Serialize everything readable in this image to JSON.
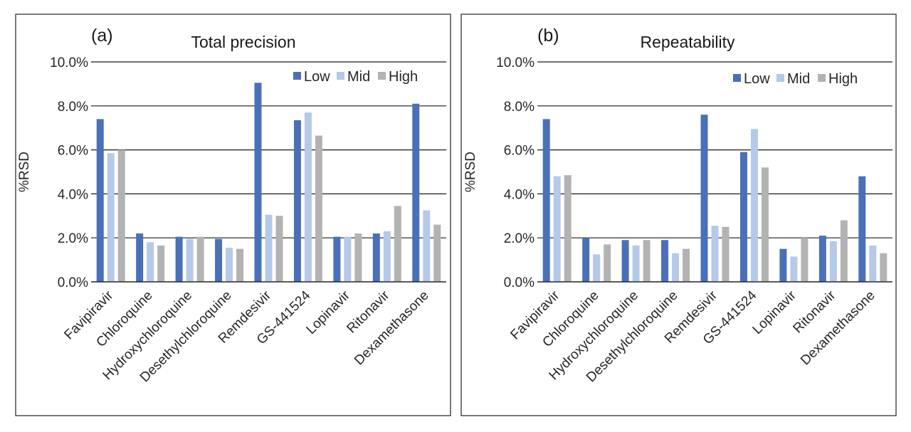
{
  "chart_data": [
    {
      "type": "bar",
      "panel_label": "(a)",
      "title": "Total precision",
      "ylabel": "%RSD",
      "xlabel": "",
      "ylim": [
        0,
        10
      ],
      "y_ticks": [
        "0.0%",
        "2.0%",
        "4.0%",
        "6.0%",
        "8.0%",
        "10.0%"
      ],
      "y_tick_values": [
        0,
        2,
        4,
        6,
        8,
        10
      ],
      "grid": true,
      "legend_position": "top-right",
      "categories": [
        "Favipiravir",
        "Chloroquine",
        "Hydroxychloroquine",
        "Desethylchloroquine",
        "Remdesivir",
        "GS-441524",
        "Lopinavir",
        "Ritonavir",
        "Dexamethasone"
      ],
      "series": [
        {
          "name": "Low",
          "color": "#4a70b8",
          "values": [
            7.4,
            2.2,
            2.05,
            1.95,
            9.05,
            7.35,
            2.05,
            2.2,
            8.1
          ]
        },
        {
          "name": "Mid",
          "color": "#b5c9e8",
          "values": [
            5.85,
            1.8,
            1.95,
            1.55,
            3.05,
            7.7,
            2.05,
            2.3,
            3.25
          ]
        },
        {
          "name": "High",
          "color": "#b3b3b3",
          "values": [
            6.0,
            1.65,
            2.05,
            1.5,
            3.0,
            6.65,
            2.2,
            3.45,
            2.6
          ]
        }
      ]
    },
    {
      "type": "bar",
      "panel_label": "(b)",
      "title": "Repeatability",
      "ylabel": "%RSD",
      "xlabel": "",
      "ylim": [
        0,
        10
      ],
      "y_ticks": [
        "0.0%",
        "2.0%",
        "4.0%",
        "6.0%",
        "8.0%",
        "10.0%"
      ],
      "y_tick_values": [
        0,
        2,
        4,
        6,
        8,
        10
      ],
      "grid": true,
      "legend_position": "top-right",
      "categories": [
        "Favipiravir",
        "Chloroquine",
        "Hydroxychloroquine",
        "Desethylchloroquine",
        "Remdesivir",
        "GS-441524",
        "Lopinavir",
        "Ritonavir",
        "Dexamethasone"
      ],
      "series": [
        {
          "name": "Low",
          "color": "#4a70b8",
          "values": [
            7.4,
            2.0,
            1.9,
            1.9,
            7.6,
            5.9,
            1.5,
            2.1,
            4.8
          ]
        },
        {
          "name": "Mid",
          "color": "#b5c9e8",
          "values": [
            4.8,
            1.25,
            1.65,
            1.3,
            2.55,
            6.95,
            1.15,
            1.85,
            1.65
          ]
        },
        {
          "name": "High",
          "color": "#b3b3b3",
          "values": [
            4.85,
            1.7,
            1.9,
            1.5,
            2.5,
            5.2,
            2.0,
            2.8,
            1.3
          ]
        }
      ]
    }
  ]
}
